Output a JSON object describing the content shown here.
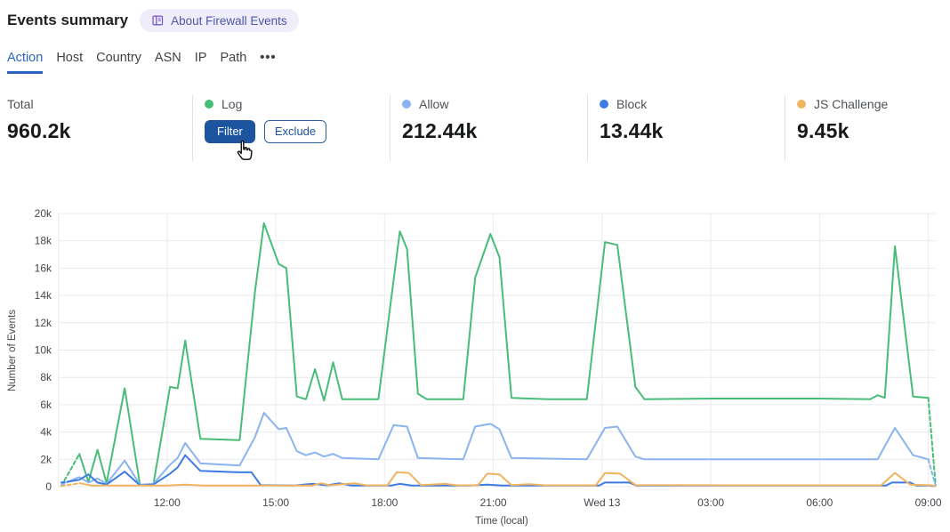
{
  "header": {
    "title": "Events summary",
    "about_badge_label": "About Firewall Events"
  },
  "tabs": {
    "items": [
      "Action",
      "Host",
      "Country",
      "ASN",
      "IP",
      "Path"
    ],
    "active": "Action",
    "overflow_label": "•••"
  },
  "stats": {
    "total_label": "Total",
    "total_value": "960.2k",
    "log": {
      "label": "Log",
      "color": "#47bd78",
      "filter_label": "Filter",
      "exclude_label": "Exclude"
    },
    "allow": {
      "label": "Allow",
      "color": "#8ab4f0",
      "value": "212.44k"
    },
    "block": {
      "label": "Block",
      "color": "#3d7be4",
      "value": "13.44k"
    },
    "js_challenge": {
      "label": "JS Challenge",
      "color": "#f0b460",
      "value": "9.45k"
    }
  },
  "chart_data": {
    "type": "line",
    "xlabel": "Time (local)",
    "ylabel": "Number of Events",
    "ylim": [
      0,
      20000
    ],
    "grid": true,
    "legend_position": "none (legend shown as stat cards above)",
    "y_ticks": [
      "0",
      "2k",
      "4k",
      "6k",
      "8k",
      "10k",
      "12k",
      "14k",
      "16k",
      "18k",
      "20k"
    ],
    "x_ticks": [
      {
        "t": 3,
        "label": "12:00"
      },
      {
        "t": 6,
        "label": "15:00"
      },
      {
        "t": 9,
        "label": "18:00"
      },
      {
        "t": 12,
        "label": "21:00"
      },
      {
        "t": 15,
        "label": "Wed 13"
      },
      {
        "t": 18,
        "label": "03:00"
      },
      {
        "t": 21,
        "label": "06:00"
      },
      {
        "t": 24,
        "label": "09:00"
      }
    ],
    "x_unit": "hours after 09:00 (local), Wed 13 = midnight",
    "value_unit": "thousands of events",
    "series": [
      {
        "name": "Log",
        "color": "#47bd78",
        "dash_head": 2,
        "dash_tail": 1,
        "points": [
          [
            0.08,
            0.05
          ],
          [
            0.35,
            1.3
          ],
          [
            0.58,
            2.4
          ],
          [
            0.83,
            0.35
          ],
          [
            1.08,
            2.7
          ],
          [
            1.33,
            0.25
          ],
          [
            1.83,
            7.2
          ],
          [
            2.25,
            0.15
          ],
          [
            2.62,
            0.15
          ],
          [
            3.08,
            7.3
          ],
          [
            3.29,
            7.2
          ],
          [
            3.5,
            10.7
          ],
          [
            3.92,
            3.5
          ],
          [
            5.0,
            3.4
          ],
          [
            5.42,
            14.2
          ],
          [
            5.67,
            19.3
          ],
          [
            6.08,
            16.3
          ],
          [
            6.29,
            16.0
          ],
          [
            6.58,
            6.6
          ],
          [
            6.83,
            6.4
          ],
          [
            7.08,
            8.6
          ],
          [
            7.33,
            6.3
          ],
          [
            7.58,
            9.1
          ],
          [
            7.83,
            6.4
          ],
          [
            8.83,
            6.4
          ],
          [
            9.17,
            13.5
          ],
          [
            9.42,
            18.7
          ],
          [
            9.62,
            17.4
          ],
          [
            9.92,
            6.8
          ],
          [
            10.17,
            6.4
          ],
          [
            11.17,
            6.4
          ],
          [
            11.5,
            15.3
          ],
          [
            11.92,
            18.5
          ],
          [
            12.17,
            16.8
          ],
          [
            12.5,
            6.5
          ],
          [
            13.5,
            6.4
          ],
          [
            14.58,
            6.4
          ],
          [
            15.08,
            17.9
          ],
          [
            15.42,
            17.7
          ],
          [
            15.92,
            7.3
          ],
          [
            16.17,
            6.4
          ],
          [
            18.0,
            6.45
          ],
          [
            21.0,
            6.45
          ],
          [
            22.4,
            6.4
          ],
          [
            22.6,
            6.7
          ],
          [
            22.8,
            6.5
          ],
          [
            23.08,
            17.6
          ],
          [
            23.58,
            6.6
          ],
          [
            24.0,
            6.5
          ],
          [
            24.2,
            0.1
          ]
        ]
      },
      {
        "name": "Allow",
        "color": "#8ab4f0",
        "dash_head": 1,
        "dash_tail": 1,
        "points": [
          [
            0.08,
            0.1
          ],
          [
            0.35,
            0.45
          ],
          [
            0.58,
            0.7
          ],
          [
            0.83,
            0.3
          ],
          [
            1.08,
            0.6
          ],
          [
            1.33,
            0.2
          ],
          [
            1.83,
            1.9
          ],
          [
            2.25,
            0.15
          ],
          [
            2.62,
            0.2
          ],
          [
            3.08,
            1.6
          ],
          [
            3.29,
            2.1
          ],
          [
            3.5,
            3.2
          ],
          [
            3.92,
            1.7
          ],
          [
            5.0,
            1.55
          ],
          [
            5.42,
            3.6
          ],
          [
            5.67,
            5.4
          ],
          [
            6.08,
            4.2
          ],
          [
            6.29,
            4.3
          ],
          [
            6.58,
            2.6
          ],
          [
            6.83,
            2.3
          ],
          [
            7.08,
            2.5
          ],
          [
            7.33,
            2.2
          ],
          [
            7.58,
            2.4
          ],
          [
            7.83,
            2.1
          ],
          [
            8.83,
            2.0
          ],
          [
            9.25,
            4.5
          ],
          [
            9.62,
            4.4
          ],
          [
            9.92,
            2.1
          ],
          [
            11.17,
            2.0
          ],
          [
            11.5,
            4.4
          ],
          [
            11.92,
            4.6
          ],
          [
            12.17,
            4.2
          ],
          [
            12.5,
            2.1
          ],
          [
            14.58,
            2.0
          ],
          [
            15.08,
            4.3
          ],
          [
            15.42,
            4.4
          ],
          [
            15.92,
            2.2
          ],
          [
            16.17,
            2.0
          ],
          [
            19.0,
            2.0
          ],
          [
            22.6,
            2.0
          ],
          [
            23.08,
            4.3
          ],
          [
            23.58,
            2.3
          ],
          [
            24.0,
            2.0
          ],
          [
            24.2,
            0.05
          ]
        ]
      },
      {
        "name": "Block",
        "color": "#3d7be4",
        "dash_head": 1,
        "dash_tail": 1,
        "points": [
          [
            0.08,
            0.3
          ],
          [
            0.35,
            0.4
          ],
          [
            0.58,
            0.5
          ],
          [
            0.83,
            0.9
          ],
          [
            1.08,
            0.3
          ],
          [
            1.33,
            0.15
          ],
          [
            1.83,
            1.1
          ],
          [
            2.25,
            0.1
          ],
          [
            2.62,
            0.15
          ],
          [
            3.08,
            0.95
          ],
          [
            3.29,
            1.4
          ],
          [
            3.5,
            2.3
          ],
          [
            3.92,
            1.15
          ],
          [
            5.0,
            1.05
          ],
          [
            5.33,
            1.05
          ],
          [
            5.58,
            0.12
          ],
          [
            6.5,
            0.08
          ],
          [
            7.0,
            0.2
          ],
          [
            7.42,
            0.1
          ],
          [
            7.75,
            0.25
          ],
          [
            8.08,
            0.08
          ],
          [
            9.17,
            0.08
          ],
          [
            9.42,
            0.2
          ],
          [
            9.75,
            0.08
          ],
          [
            11.33,
            0.08
          ],
          [
            11.83,
            0.15
          ],
          [
            12.25,
            0.08
          ],
          [
            14.92,
            0.08
          ],
          [
            15.08,
            0.3
          ],
          [
            15.75,
            0.3
          ],
          [
            15.95,
            0.08
          ],
          [
            19.0,
            0.08
          ],
          [
            22.83,
            0.08
          ],
          [
            23.0,
            0.3
          ],
          [
            23.5,
            0.3
          ],
          [
            23.67,
            0.08
          ],
          [
            24.05,
            0.08
          ],
          [
            24.2,
            0.02
          ]
        ]
      },
      {
        "name": "JS Challenge",
        "color": "#f0b460",
        "dash_head": 1,
        "dash_tail": 1,
        "points": [
          [
            0.08,
            0.05
          ],
          [
            0.6,
            0.25
          ],
          [
            0.92,
            0.08
          ],
          [
            3.0,
            0.08
          ],
          [
            3.5,
            0.15
          ],
          [
            4.0,
            0.08
          ],
          [
            7.0,
            0.08
          ],
          [
            7.25,
            0.25
          ],
          [
            7.5,
            0.1
          ],
          [
            8.17,
            0.25
          ],
          [
            8.5,
            0.1
          ],
          [
            9.08,
            0.1
          ],
          [
            9.33,
            1.05
          ],
          [
            9.67,
            1.0
          ],
          [
            10.0,
            0.12
          ],
          [
            10.67,
            0.2
          ],
          [
            11.0,
            0.1
          ],
          [
            11.58,
            0.1
          ],
          [
            11.83,
            0.95
          ],
          [
            12.17,
            0.9
          ],
          [
            12.5,
            0.12
          ],
          [
            13.0,
            0.18
          ],
          [
            13.42,
            0.1
          ],
          [
            14.83,
            0.1
          ],
          [
            15.08,
            1.0
          ],
          [
            15.5,
            0.95
          ],
          [
            15.92,
            0.12
          ],
          [
            19.0,
            0.1
          ],
          [
            22.7,
            0.1
          ],
          [
            23.08,
            1.0
          ],
          [
            23.5,
            0.15
          ],
          [
            24.1,
            0.1
          ],
          [
            24.2,
            0.02
          ]
        ]
      }
    ]
  }
}
